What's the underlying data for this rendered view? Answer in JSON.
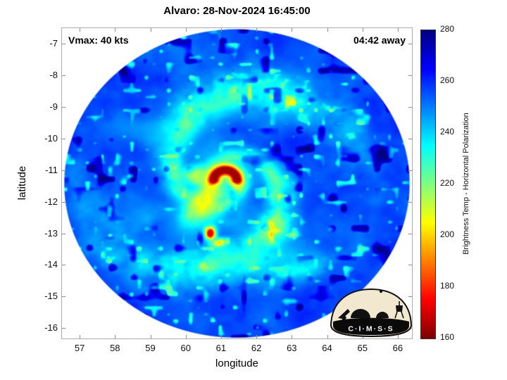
{
  "chart_data": {
    "type": "heatmap",
    "title": "Alvaro: 28-Nov-2024 16:45:00",
    "xlabel": "longitude",
    "ylabel": "latitude",
    "xlim": [
      56.5,
      66.4
    ],
    "ylim": [
      -16.33,
      -6.5
    ],
    "xticks": [
      57,
      58,
      59,
      60,
      61,
      62,
      63,
      64,
      65,
      66
    ],
    "yticks": [
      -7,
      -8,
      -9,
      -10,
      -11,
      -12,
      -13,
      -14,
      -15,
      -16
    ],
    "annotations": {
      "vmax": "Vmax: 40 kts",
      "eta": "04:42 away"
    },
    "colorbar": {
      "label": "Brightness Temp - Horizontal Polarization",
      "min": 160,
      "max": 280,
      "ticks": [
        280,
        260,
        240,
        220,
        200,
        180,
        160
      ],
      "colormap": "jet-reversed"
    },
    "grid": false,
    "legend": "none",
    "swath": {
      "center_lon": 61.45,
      "center_lat": -11.42,
      "radius_deg": 4.9,
      "background_temp_K": 255
    },
    "storm": {
      "name": "Alvaro",
      "center_lon": 61.12,
      "center_lat": -11.33,
      "eyewall_min_temp_K": 164,
      "features": [
        {
          "name": "inner-green-shield",
          "lon": 60.95,
          "lat": -11.65,
          "sx": 1.15,
          "sy": 1.35,
          "rot": -30,
          "temp": 234,
          "gain": 0.75,
          "noisy": 0.6
        },
        {
          "name": "core-yellow-comma",
          "lon": 60.52,
          "lat": -11.95,
          "sx": 0.45,
          "sy": 0.95,
          "rot": -30,
          "temp": 203,
          "gain": 1.0,
          "noisy": 0.55
        },
        {
          "name": "core-yellow-nw",
          "lon": 60.3,
          "lat": -11.15,
          "sx": 0.38,
          "sy": 0.3,
          "rot": 0,
          "temp": 212,
          "gain": 0.85,
          "noisy": 0.6
        },
        {
          "name": "south-red-cell",
          "lon": 60.7,
          "lat": -13.0,
          "sx": 0.14,
          "sy": 0.19,
          "rot": 0,
          "temp": 172,
          "gain": 1.3,
          "noisy": 0.2
        },
        {
          "name": "south-orange-cell",
          "lon": 60.95,
          "lat": -13.3,
          "sx": 0.22,
          "sy": 0.13,
          "rot": 15,
          "temp": 196,
          "gain": 1.0,
          "noisy": 0.3
        },
        {
          "name": "south-band-enhance",
          "lon": 61.7,
          "lat": -13.8,
          "sx": 1.4,
          "sy": 0.4,
          "rot": 8,
          "temp": 228,
          "gain": 0.65,
          "noisy": 0.8
        },
        {
          "name": "se-band-speckles",
          "lon": 63.2,
          "lat": -14.2,
          "sx": 1.1,
          "sy": 0.45,
          "rot": 18,
          "temp": 227,
          "gain": 0.6,
          "noisy": 0.85
        },
        {
          "name": "sw-green-patch",
          "lon": 58.9,
          "lat": -12.5,
          "sx": 0.8,
          "sy": 0.55,
          "rot": -35,
          "temp": 240,
          "gain": 0.55,
          "noisy": 0.7
        },
        {
          "name": "nw-band",
          "lon": 59.5,
          "lat": -10.05,
          "sx": 1.2,
          "sy": 0.5,
          "rot": -15,
          "temp": 238,
          "gain": 0.55,
          "noisy": 0.7
        },
        {
          "name": "n-speckle-band",
          "lon": 61.3,
          "lat": -9.3,
          "sx": 1.6,
          "sy": 0.5,
          "rot": 5,
          "temp": 244,
          "gain": 0.45,
          "noisy": 0.9
        }
      ],
      "arcs": [
        {
          "name": "eyewall-halo",
          "lon": 61.12,
          "lat": -11.33,
          "r": 0.34,
          "width": 0.28,
          "ang_start": -60,
          "ang_end": 230,
          "temp": 202,
          "gain": 0.85
        },
        {
          "name": "eyewall-red-hook",
          "lon": 61.12,
          "lat": -11.33,
          "r": 0.33,
          "width": 0.13,
          "ang_start": -25,
          "ang_end": 205,
          "temp": 164,
          "gain": 1.6
        }
      ]
    },
    "logo": {
      "text": "C·I·M·S·S"
    }
  }
}
